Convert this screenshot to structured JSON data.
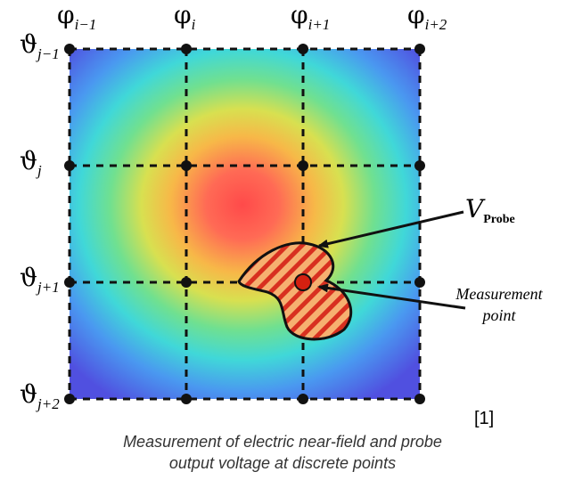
{
  "columns": [
    {
      "symbol": "φ",
      "sub": "i−1"
    },
    {
      "symbol": "φ",
      "sub": "i"
    },
    {
      "symbol": "φ",
      "sub": "i+1"
    },
    {
      "symbol": "φ",
      "sub": "i+2"
    }
  ],
  "rows": [
    {
      "symbol": "ϑ",
      "sub": "j−1"
    },
    {
      "symbol": "ϑ",
      "sub": "j"
    },
    {
      "symbol": "ϑ",
      "sub": "j+1"
    },
    {
      "symbol": "ϑ",
      "sub": "j+2"
    }
  ],
  "probe_label": {
    "symbol": "V",
    "sub": "Probe"
  },
  "measurement_label": [
    "Measurement",
    "point"
  ],
  "reference": "[1]",
  "caption": [
    "Measurement of electric near-field and probe",
    "output voltage at discrete points"
  ]
}
